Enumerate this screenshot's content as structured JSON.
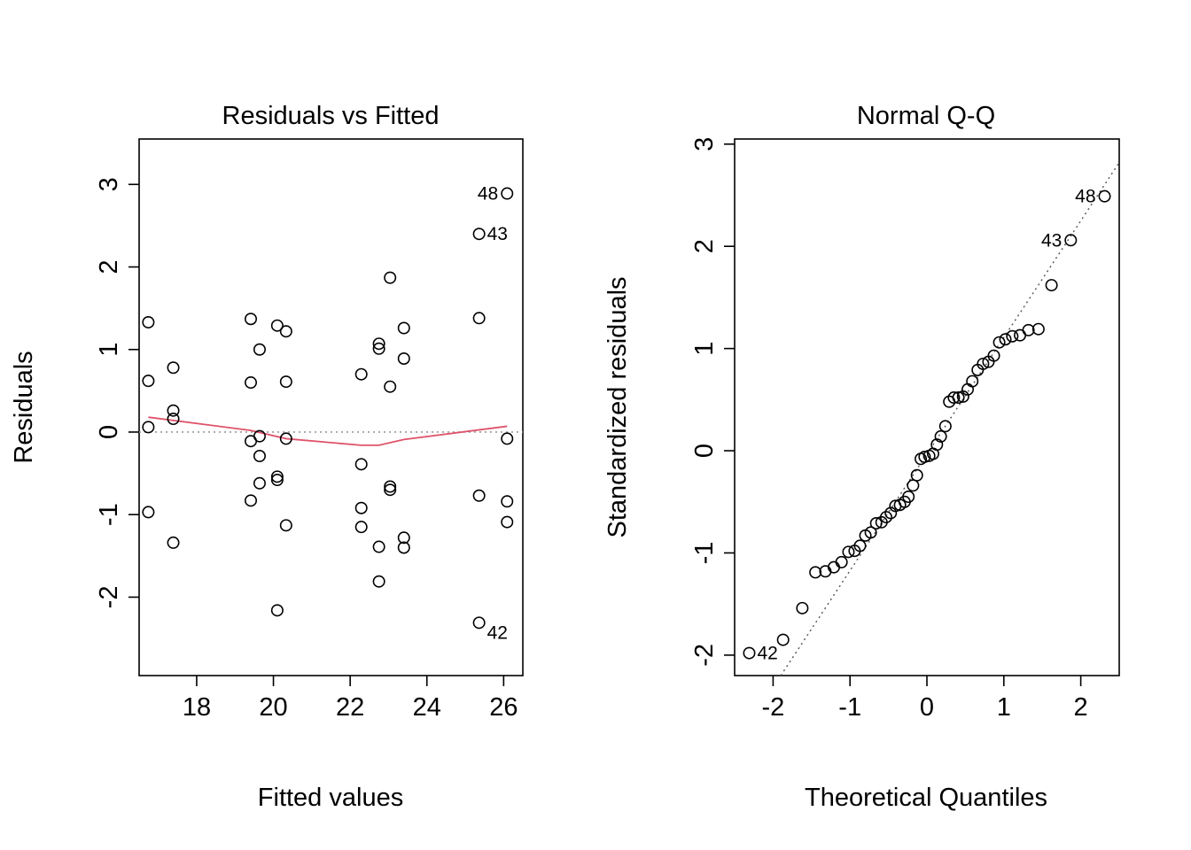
{
  "chart_data": [
    {
      "type": "scatter",
      "title": "Residuals vs Fitted",
      "xlabel": "Fitted values",
      "ylabel": "Residuals",
      "xlim": [
        16.5,
        26.5
      ],
      "ylim": [
        -2.95,
        3.55
      ],
      "xticks": [
        18,
        20,
        22,
        24,
        26
      ],
      "yticks": [
        -2,
        -1,
        0,
        1,
        2,
        3
      ],
      "grid": false,
      "zero_reference_line": true,
      "points": [
        [
          16.74,
          1.33
        ],
        [
          16.74,
          0.62
        ],
        [
          16.74,
          0.06
        ],
        [
          16.74,
          -0.97
        ],
        [
          17.39,
          0.78
        ],
        [
          17.39,
          0.26
        ],
        [
          17.39,
          0.16
        ],
        [
          17.39,
          -1.34
        ],
        [
          19.41,
          1.37
        ],
        [
          19.41,
          0.6
        ],
        [
          19.41,
          -0.11
        ],
        [
          19.41,
          -0.83
        ],
        [
          19.64,
          1.0
        ],
        [
          19.64,
          -0.05
        ],
        [
          19.64,
          -0.29
        ],
        [
          19.64,
          -0.62
        ],
        [
          20.1,
          1.29
        ],
        [
          20.1,
          -0.54
        ],
        [
          20.1,
          -0.58
        ],
        [
          20.1,
          -2.16
        ],
        [
          20.33,
          1.22
        ],
        [
          20.33,
          0.61
        ],
        [
          20.33,
          -0.08
        ],
        [
          20.33,
          -1.13
        ],
        [
          22.29,
          0.7
        ],
        [
          22.29,
          -0.39
        ],
        [
          22.29,
          -0.92
        ],
        [
          22.29,
          -1.15
        ],
        [
          22.75,
          1.07
        ],
        [
          22.75,
          1.01
        ],
        [
          22.75,
          -1.39
        ],
        [
          22.75,
          -1.81
        ],
        [
          23.04,
          1.87
        ],
        [
          23.04,
          0.55
        ],
        [
          23.04,
          -0.66
        ],
        [
          23.04,
          -0.7
        ],
        [
          23.4,
          1.26
        ],
        [
          23.4,
          0.89
        ],
        [
          23.4,
          -1.28
        ],
        [
          23.4,
          -1.4
        ],
        [
          25.36,
          2.4
        ],
        [
          25.36,
          1.38
        ],
        [
          25.36,
          -0.77
        ],
        [
          25.36,
          -2.31
        ],
        [
          26.09,
          2.89
        ],
        [
          26.09,
          -0.08
        ],
        [
          26.09,
          -0.84
        ],
        [
          26.09,
          -1.09
        ]
      ],
      "smooth_line": {
        "color": "#DF536B",
        "x": [
          16.74,
          19.41,
          20.33,
          22.29,
          22.75,
          23.4,
          26.09
        ],
        "y": [
          0.18,
          0.02,
          -0.08,
          -0.16,
          -0.16,
          -0.09,
          0.07
        ]
      },
      "point_labels": [
        {
          "text": "48",
          "x": 26.09,
          "y": 2.89,
          "side": "left"
        },
        {
          "text": "43",
          "x": 25.36,
          "y": 2.4,
          "side": "right"
        },
        {
          "text": "42",
          "x": 25.36,
          "y": -2.31,
          "side": "right-below"
        }
      ]
    },
    {
      "type": "scatter",
      "title": "Normal Q-Q",
      "xlabel": "Theoretical Quantiles",
      "ylabel": "Standardized residuals",
      "xlim": [
        -2.5,
        2.5
      ],
      "ylim": [
        -2.2,
        3.05
      ],
      "xticks": [
        -2,
        -1,
        0,
        1,
        2
      ],
      "yticks": [
        -2,
        -1,
        0,
        1,
        2,
        3
      ],
      "grid": false,
      "reference_line": {
        "style": "dotted",
        "x": [
          -1.9,
          2.5
        ],
        "y": [
          -2.2,
          2.82
        ]
      },
      "points": [
        [
          -2.31,
          -1.98
        ],
        [
          -1.87,
          -1.85
        ],
        [
          -1.62,
          -1.54
        ],
        [
          -1.45,
          -1.19
        ],
        [
          -1.32,
          -1.18
        ],
        [
          -1.21,
          -1.14
        ],
        [
          -1.11,
          -1.09
        ],
        [
          -1.02,
          -0.99
        ],
        [
          -0.94,
          -0.98
        ],
        [
          -0.87,
          -0.93
        ],
        [
          -0.8,
          -0.83
        ],
        [
          -0.73,
          -0.8
        ],
        [
          -0.66,
          -0.71
        ],
        [
          -0.59,
          -0.7
        ],
        [
          -0.53,
          -0.65
        ],
        [
          -0.47,
          -0.61
        ],
        [
          -0.41,
          -0.54
        ],
        [
          -0.35,
          -0.53
        ],
        [
          -0.29,
          -0.5
        ],
        [
          -0.24,
          -0.45
        ],
        [
          -0.18,
          -0.34
        ],
        [
          -0.13,
          -0.24
        ],
        [
          -0.08,
          -0.08
        ],
        [
          -0.03,
          -0.06
        ],
        [
          0.03,
          -0.05
        ],
        [
          0.08,
          -0.03
        ],
        [
          0.13,
          0.06
        ],
        [
          0.18,
          0.14
        ],
        [
          0.24,
          0.24
        ],
        [
          0.29,
          0.48
        ],
        [
          0.35,
          0.52
        ],
        [
          0.41,
          0.52
        ],
        [
          0.47,
          0.53
        ],
        [
          0.53,
          0.6
        ],
        [
          0.59,
          0.68
        ],
        [
          0.66,
          0.79
        ],
        [
          0.73,
          0.85
        ],
        [
          0.8,
          0.87
        ],
        [
          0.87,
          0.93
        ],
        [
          0.94,
          1.06
        ],
        [
          1.02,
          1.09
        ],
        [
          1.11,
          1.12
        ],
        [
          1.21,
          1.13
        ],
        [
          1.32,
          1.18
        ],
        [
          1.45,
          1.19
        ],
        [
          1.62,
          1.62
        ],
        [
          1.87,
          2.06
        ],
        [
          2.31,
          2.49
        ]
      ],
      "point_labels": [
        {
          "text": "48",
          "x": 2.31,
          "y": 2.49,
          "side": "left"
        },
        {
          "text": "43",
          "x": 1.87,
          "y": 2.06,
          "side": "left"
        },
        {
          "text": "42",
          "x": -2.31,
          "y": -1.98,
          "side": "right"
        }
      ]
    }
  ]
}
